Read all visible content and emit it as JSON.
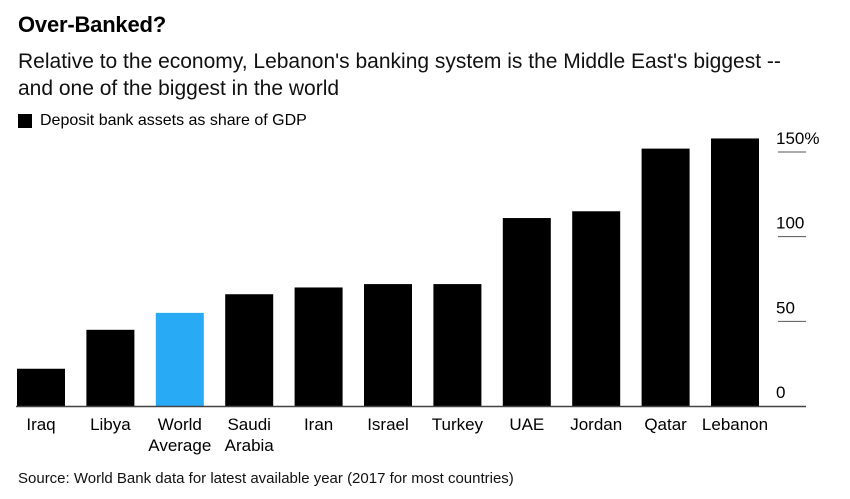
{
  "header": {
    "title": "Over-Banked?",
    "subtitle": "Relative to the economy, Lebanon's banking system is the Middle East's biggest -- and one of the biggest in the world"
  },
  "legend": {
    "label": "Deposit bank assets as share of GDP",
    "color": "#000000"
  },
  "footer": {
    "source": "Source: World Bank data for latest available year (2017 for most countries)"
  },
  "chart_data": {
    "type": "bar",
    "title": "Over-Banked?",
    "ylabel": "Deposit bank assets as share of GDP",
    "xlabel": "",
    "ylim": [
      0,
      160
    ],
    "yticks": [
      0,
      50,
      100,
      150
    ],
    "ytick_labels": [
      "0",
      "50",
      "100",
      "150%"
    ],
    "categories": [
      [
        "Iraq"
      ],
      [
        "Libya"
      ],
      [
        "World",
        "Average"
      ],
      [
        "Saudi",
        "Arabia"
      ],
      [
        "Iran"
      ],
      [
        "Israel"
      ],
      [
        "Turkey"
      ],
      [
        "UAE"
      ],
      [
        "Jordan"
      ],
      [
        "Qatar"
      ],
      [
        "Lebanon"
      ]
    ],
    "values": [
      22,
      45,
      55,
      66,
      70,
      72,
      72,
      111,
      115,
      152,
      158
    ],
    "colors": [
      "#000000",
      "#000000",
      "#29aaf4",
      "#000000",
      "#000000",
      "#000000",
      "#000000",
      "#000000",
      "#000000",
      "#000000",
      "#000000"
    ],
    "axis_color": "#444444"
  }
}
